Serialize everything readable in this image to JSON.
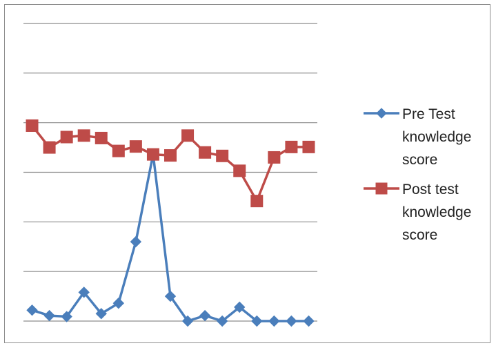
{
  "chart_data": {
    "type": "line",
    "title": "",
    "xlabel": "",
    "ylabel": "",
    "x": [
      1,
      2,
      3,
      4,
      5,
      6,
      7,
      8,
      9,
      10,
      11,
      12,
      13,
      14,
      15,
      16,
      17
    ],
    "ylim": [
      0,
      6
    ],
    "grid": true,
    "legend_placement": "right",
    "series": [
      {
        "name": "Pre Test knowledge score",
        "color": "#4a7ebb",
        "marker": "diamond",
        "values": [
          0.22,
          0.11,
          0.09,
          0.58,
          0.15,
          0.36,
          1.6,
          3.36,
          0.5,
          0.0,
          0.11,
          0.0,
          0.28,
          0.0,
          0.0,
          0.0,
          0.0
        ]
      },
      {
        "name": "Post test knowledge score",
        "color": "#be4b48",
        "marker": "square",
        "values": [
          3.94,
          3.5,
          3.71,
          3.74,
          3.69,
          3.43,
          3.52,
          3.36,
          3.34,
          3.74,
          3.4,
          3.33,
          3.03,
          2.42,
          3.3,
          3.51,
          3.51
        ]
      }
    ],
    "legend_lines": [
      [
        "Pre Test",
        "knowledge",
        "score"
      ],
      [
        "Post test",
        "knowledge",
        "score"
      ]
    ]
  }
}
